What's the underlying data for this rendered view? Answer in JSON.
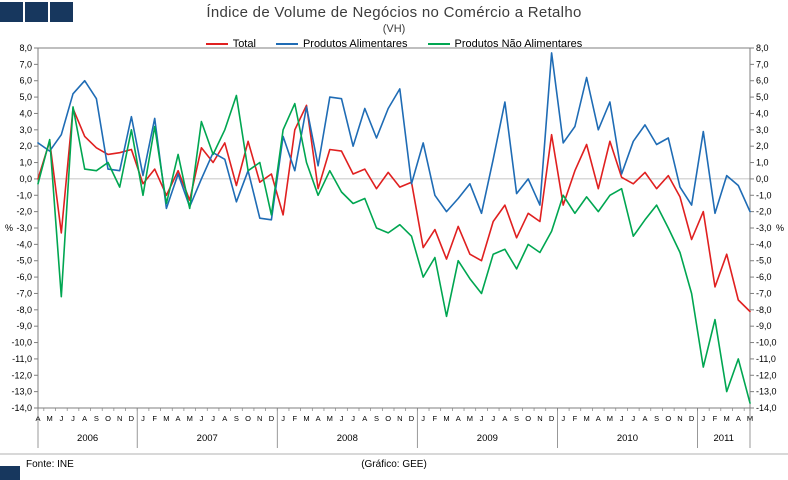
{
  "logo": {
    "color": "#17375e",
    "square_count": 3
  },
  "footer": {
    "source": "Fonte: INE",
    "credit": "(Gráfico: GEE)"
  },
  "chart_data": {
    "type": "line",
    "title": "Índice de Volume de Negócios no Comércio a Retalho",
    "subtitle": "(VH)",
    "unit": "%",
    "ylim": [
      -14,
      8
    ],
    "ytick_step": 1,
    "grid": false,
    "legend_position": "top",
    "decimal_separator": ",",
    "x_months": [
      "A",
      "M",
      "J",
      "J",
      "A",
      "S",
      "O",
      "N",
      "D",
      "J",
      "F",
      "M",
      "A",
      "M",
      "J",
      "J",
      "A",
      "S",
      "O",
      "N",
      "D",
      "J",
      "F",
      "M",
      "A",
      "M",
      "J",
      "J",
      "A",
      "S",
      "O",
      "N",
      "D",
      "J",
      "F",
      "M",
      "A",
      "M",
      "J",
      "J",
      "A",
      "S",
      "O",
      "N",
      "D",
      "J",
      "F",
      "M",
      "A",
      "M",
      "J",
      "J",
      "A",
      "S",
      "O",
      "N",
      "D",
      "J",
      "F",
      "M",
      "A",
      "M"
    ],
    "year_groups": [
      {
        "year": "2006",
        "count": 9
      },
      {
        "year": "2007",
        "count": 12
      },
      {
        "year": "2008",
        "count": 12
      },
      {
        "year": "2009",
        "count": 12
      },
      {
        "year": "2010",
        "count": 12
      },
      {
        "year": "2011",
        "count": 5
      }
    ],
    "series": [
      {
        "name": "Total",
        "color": "#e02020",
        "values": [
          0.0,
          2.3,
          -3.3,
          4.3,
          2.6,
          1.9,
          1.5,
          1.6,
          1.8,
          -0.3,
          0.6,
          -1.0,
          0.5,
          -1.3,
          1.9,
          1.0,
          2.2,
          -0.4,
          2.3,
          -0.2,
          0.3,
          -2.2,
          3.0,
          4.5,
          -0.6,
          1.8,
          1.7,
          0.3,
          0.6,
          -0.6,
          0.4,
          -0.5,
          -0.2,
          -4.2,
          -3.1,
          -4.9,
          -2.9,
          -4.6,
          -5.0,
          -2.6,
          -1.6,
          -3.6,
          -2.1,
          -2.6,
          2.7,
          -1.6,
          0.5,
          2.1,
          -0.6,
          2.3,
          0.1,
          -0.3,
          0.4,
          -0.6,
          0.2,
          -1.1,
          -3.7,
          -2.0,
          -6.6,
          -4.6,
          -7.4,
          -8.1
        ]
      },
      {
        "name": "Produtos Alimentares",
        "color": "#1f6cb5",
        "values": [
          2.2,
          1.7,
          2.7,
          5.2,
          6.0,
          4.9,
          0.6,
          0.5,
          3.8,
          0.2,
          3.7,
          -1.8,
          0.3,
          -1.7,
          0.0,
          1.6,
          1.2,
          -1.4,
          0.5,
          -2.4,
          -2.5,
          2.6,
          0.5,
          4.4,
          0.8,
          5.0,
          4.9,
          2.0,
          4.3,
          2.5,
          4.3,
          5.5,
          -0.3,
          2.2,
          -1.0,
          -2.0,
          -1.2,
          -0.3,
          -2.1,
          1.2,
          4.7,
          -0.9,
          0.0,
          -1.6,
          7.7,
          2.2,
          3.2,
          6.2,
          3.0,
          4.7,
          0.3,
          2.3,
          3.3,
          2.1,
          2.5,
          -0.5,
          -1.6,
          2.9,
          -2.1,
          0.2,
          -0.4,
          -2.0
        ]
      },
      {
        "name": "Produtos Não Alimentares",
        "color": "#00a651",
        "values": [
          -0.3,
          2.4,
          -7.2,
          4.4,
          0.6,
          0.5,
          1.0,
          -0.5,
          3.0,
          -1.0,
          3.2,
          -1.5,
          1.5,
          -1.8,
          3.5,
          1.5,
          3.0,
          5.1,
          0.5,
          1.0,
          -2.2,
          3.0,
          4.6,
          1.0,
          -1.0,
          0.5,
          -0.8,
          -1.5,
          -1.2,
          -3.0,
          -3.3,
          -2.8,
          -3.5,
          -6.0,
          -4.8,
          -8.4,
          -5.0,
          -6.1,
          -7.0,
          -4.6,
          -4.3,
          -5.5,
          -4.0,
          -4.5,
          -3.2,
          -1.0,
          -2.1,
          -1.1,
          -2.0,
          -1.0,
          -0.6,
          -3.5,
          -2.5,
          -1.6,
          -3.0,
          -4.5,
          -7.0,
          -11.5,
          -8.6,
          -13.0,
          -11.0,
          -13.7
        ]
      }
    ]
  }
}
